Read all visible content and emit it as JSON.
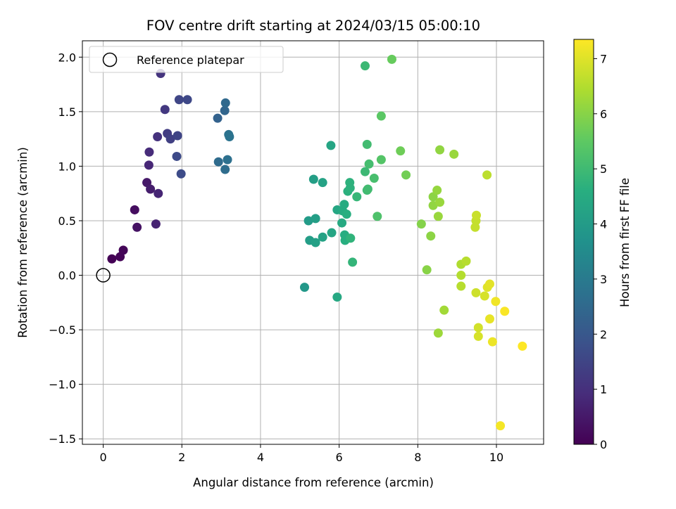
{
  "chart_data": {
    "type": "scatter",
    "title": "FOV centre drift starting at 2024/03/15 05:00:10",
    "xlabel": "Angular distance from reference (arcmin)",
    "ylabel": "Rotation from reference (arcmin)",
    "xlim": [
      -0.53,
      11.2
    ],
    "ylim": [
      -1.55,
      2.15
    ],
    "x_ticks": [
      0,
      2,
      4,
      6,
      8,
      10
    ],
    "y_ticks": [
      -1.5,
      -1.0,
      -0.5,
      0.0,
      0.5,
      1.0,
      1.5,
      2.0
    ],
    "x_tick_labels": [
      "0",
      "2",
      "4",
      "6",
      "8",
      "10"
    ],
    "y_tick_labels": [
      "−1.5",
      "−1.0",
      "−0.5",
      "0.0",
      "0.5",
      "1.0",
      "1.5",
      "2.0"
    ],
    "grid": true,
    "colormap": "viridis",
    "colorbar": {
      "label": "Hours from first FF file",
      "range": [
        0,
        7.35
      ],
      "ticks": [
        0,
        1,
        2,
        3,
        4,
        5,
        6,
        7
      ],
      "tick_labels": [
        "0",
        "1",
        "2",
        "3",
        "4",
        "5",
        "6",
        "7"
      ]
    },
    "legend": {
      "position": "top-left",
      "entries": [
        {
          "label": "Reference platepar",
          "marker": "open-circle"
        }
      ]
    },
    "reference_point": {
      "x": 0.0,
      "y": 0.0
    },
    "points": [
      {
        "x": 0.22,
        "y": 0.15,
        "hours": 0.02
      },
      {
        "x": 0.43,
        "y": 0.17,
        "hours": 0.06
      },
      {
        "x": 0.51,
        "y": 0.23,
        "hours": 0.1
      },
      {
        "x": 0.8,
        "y": 0.6,
        "hours": 0.25
      },
      {
        "x": 0.86,
        "y": 0.44,
        "hours": 0.35
      },
      {
        "x": 1.11,
        "y": 0.85,
        "hours": 0.5
      },
      {
        "x": 1.2,
        "y": 0.79,
        "hours": 0.6
      },
      {
        "x": 1.34,
        "y": 0.47,
        "hours": 0.7
      },
      {
        "x": 1.4,
        "y": 0.75,
        "hours": 0.75
      },
      {
        "x": 1.16,
        "y": 1.01,
        "hours": 0.8
      },
      {
        "x": 1.17,
        "y": 1.13,
        "hours": 0.9
      },
      {
        "x": 1.38,
        "y": 1.27,
        "hours": 1.05
      },
      {
        "x": 1.46,
        "y": 1.85,
        "hours": 1.1
      },
      {
        "x": 1.57,
        "y": 1.52,
        "hours": 1.2
      },
      {
        "x": 1.63,
        "y": 1.3,
        "hours": 1.3
      },
      {
        "x": 1.71,
        "y": 1.25,
        "hours": 1.4
      },
      {
        "x": 1.89,
        "y": 1.28,
        "hours": 1.5
      },
      {
        "x": 1.93,
        "y": 1.61,
        "hours": 1.55
      },
      {
        "x": 2.14,
        "y": 1.61,
        "hours": 1.6
      },
      {
        "x": 1.87,
        "y": 1.09,
        "hours": 1.65
      },
      {
        "x": 1.98,
        "y": 0.93,
        "hours": 1.7
      },
      {
        "x": 2.91,
        "y": 1.44,
        "hours": 2.3
      },
      {
        "x": 3.09,
        "y": 1.51,
        "hours": 2.4
      },
      {
        "x": 3.11,
        "y": 1.58,
        "hours": 2.5
      },
      {
        "x": 2.93,
        "y": 1.04,
        "hours": 2.55
      },
      {
        "x": 3.1,
        "y": 0.97,
        "hours": 2.6
      },
      {
        "x": 3.16,
        "y": 1.06,
        "hours": 2.7
      },
      {
        "x": 3.19,
        "y": 1.29,
        "hours": 2.75
      },
      {
        "x": 3.21,
        "y": 1.27,
        "hours": 2.8
      },
      {
        "x": 5.12,
        "y": -0.11,
        "hours": 3.9
      },
      {
        "x": 5.22,
        "y": 0.5,
        "hours": 4.0
      },
      {
        "x": 5.25,
        "y": 0.32,
        "hours": 4.05
      },
      {
        "x": 5.35,
        "y": 0.88,
        "hours": 4.1
      },
      {
        "x": 5.4,
        "y": 0.52,
        "hours": 4.1
      },
      {
        "x": 5.4,
        "y": 0.3,
        "hours": 4.15
      },
      {
        "x": 5.58,
        "y": 0.85,
        "hours": 4.2
      },
      {
        "x": 5.58,
        "y": 0.35,
        "hours": 4.2
      },
      {
        "x": 5.79,
        "y": 1.19,
        "hours": 4.3
      },
      {
        "x": 5.81,
        "y": 0.39,
        "hours": 4.3
      },
      {
        "x": 5.95,
        "y": 0.6,
        "hours": 4.35
      },
      {
        "x": 5.95,
        "y": -0.2,
        "hours": 4.4
      },
      {
        "x": 6.07,
        "y": 0.48,
        "hours": 4.45
      },
      {
        "x": 6.09,
        "y": 0.59,
        "hours": 4.5
      },
      {
        "x": 6.13,
        "y": 0.65,
        "hours": 4.5
      },
      {
        "x": 6.14,
        "y": 0.37,
        "hours": 4.55
      },
      {
        "x": 6.15,
        "y": 0.32,
        "hours": 4.6
      },
      {
        "x": 6.19,
        "y": 0.56,
        "hours": 4.6
      },
      {
        "x": 6.22,
        "y": 0.77,
        "hours": 4.65
      },
      {
        "x": 6.27,
        "y": 0.85,
        "hours": 4.7
      },
      {
        "x": 6.28,
        "y": 0.8,
        "hours": 4.7
      },
      {
        "x": 6.29,
        "y": 0.34,
        "hours": 4.75
      },
      {
        "x": 6.34,
        "y": 0.12,
        "hours": 4.8
      },
      {
        "x": 6.45,
        "y": 0.72,
        "hours": 4.85
      },
      {
        "x": 6.66,
        "y": 1.92,
        "hours": 4.95
      },
      {
        "x": 6.66,
        "y": 0.95,
        "hours": 4.95
      },
      {
        "x": 6.71,
        "y": 0.78,
        "hours": 5.0
      },
      {
        "x": 6.71,
        "y": 1.2,
        "hours": 5.05
      },
      {
        "x": 6.73,
        "y": 0.79,
        "hours": 5.05
      },
      {
        "x": 6.76,
        "y": 1.02,
        "hours": 5.1
      },
      {
        "x": 6.89,
        "y": 0.89,
        "hours": 5.15
      },
      {
        "x": 6.97,
        "y": 0.54,
        "hours": 5.25
      },
      {
        "x": 7.07,
        "y": 1.06,
        "hours": 5.35
      },
      {
        "x": 7.07,
        "y": 1.46,
        "hours": 5.45
      },
      {
        "x": 7.34,
        "y": 1.98,
        "hours": 5.6
      },
      {
        "x": 7.56,
        "y": 1.14,
        "hours": 5.7
      },
      {
        "x": 7.7,
        "y": 0.92,
        "hours": 5.75
      },
      {
        "x": 8.09,
        "y": 0.47,
        "hours": 5.95
      },
      {
        "x": 8.23,
        "y": 0.05,
        "hours": 6.0
      },
      {
        "x": 8.33,
        "y": 0.36,
        "hours": 6.05
      },
      {
        "x": 8.39,
        "y": 0.72,
        "hours": 6.05
      },
      {
        "x": 8.39,
        "y": 0.64,
        "hours": 6.1
      },
      {
        "x": 8.49,
        "y": 0.78,
        "hours": 6.15
      },
      {
        "x": 8.52,
        "y": 0.54,
        "hours": 6.2
      },
      {
        "x": 8.56,
        "y": 0.67,
        "hours": 6.2
      },
      {
        "x": 8.56,
        "y": 1.15,
        "hours": 6.1
      },
      {
        "x": 8.52,
        "y": -0.53,
        "hours": 6.25
      },
      {
        "x": 8.67,
        "y": -0.32,
        "hours": 6.3
      },
      {
        "x": 8.92,
        "y": 1.11,
        "hours": 6.2
      },
      {
        "x": 9.1,
        "y": 0.1,
        "hours": 6.45
      },
      {
        "x": 9.1,
        "y": 0.0,
        "hours": 6.5
      },
      {
        "x": 9.1,
        "y": -0.1,
        "hours": 6.55
      },
      {
        "x": 9.23,
        "y": 0.13,
        "hours": 6.55
      },
      {
        "x": 9.46,
        "y": 0.44,
        "hours": 6.7
      },
      {
        "x": 9.48,
        "y": 0.5,
        "hours": 6.7
      },
      {
        "x": 9.49,
        "y": 0.55,
        "hours": 6.75
      },
      {
        "x": 9.48,
        "y": -0.16,
        "hours": 6.8
      },
      {
        "x": 9.54,
        "y": -0.48,
        "hours": 6.85
      },
      {
        "x": 9.54,
        "y": -0.56,
        "hours": 6.9
      },
      {
        "x": 9.7,
        "y": -0.19,
        "hours": 6.9
      },
      {
        "x": 9.76,
        "y": 0.92,
        "hours": 6.6
      },
      {
        "x": 9.77,
        "y": -0.11,
        "hours": 7.0
      },
      {
        "x": 9.83,
        "y": -0.08,
        "hours": 7.05
      },
      {
        "x": 9.83,
        "y": -0.4,
        "hours": 7.1
      },
      {
        "x": 9.9,
        "y": -0.61,
        "hours": 7.15
      },
      {
        "x": 9.98,
        "y": -0.24,
        "hours": 7.2
      },
      {
        "x": 10.1,
        "y": -1.38,
        "hours": 7.25
      },
      {
        "x": 10.21,
        "y": -0.33,
        "hours": 7.3
      },
      {
        "x": 10.66,
        "y": -0.65,
        "hours": 7.35
      }
    ]
  }
}
